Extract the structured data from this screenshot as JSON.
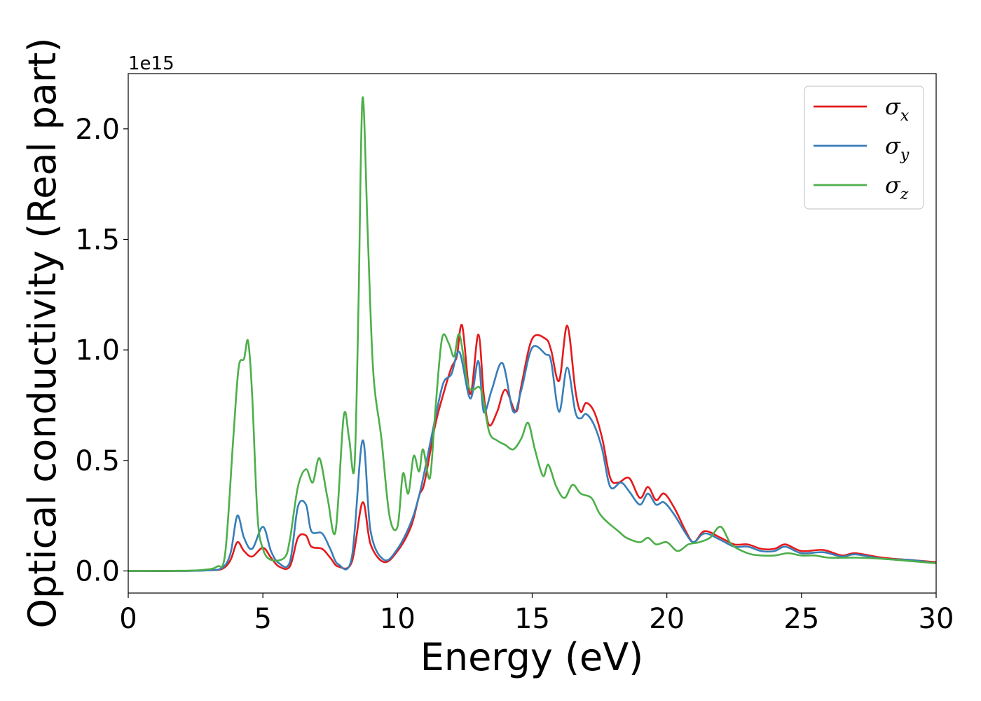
{
  "chart_data": {
    "type": "line",
    "xlabel": "Energy (eV)",
    "ylabel": "Optical conductivity (Real part)",
    "y_offset_text": "1e15",
    "xlim": [
      0,
      30
    ],
    "ylim": [
      -0.1,
      2.25
    ],
    "x_ticks": [
      0,
      5,
      10,
      15,
      20,
      25,
      30
    ],
    "x_tick_labels": [
      "0",
      "5",
      "10",
      "15",
      "20",
      "25",
      "30"
    ],
    "y_ticks": [
      0.0,
      0.5,
      1.0,
      1.5,
      2.0
    ],
    "y_tick_labels": [
      "0.0",
      "0.5",
      "1.0",
      "1.5",
      "2.0"
    ],
    "grid": false,
    "legend_position": "top-right",
    "series": [
      {
        "name": "σx",
        "symbol": "σ",
        "subscript": "x",
        "color": "#e41a1c",
        "points": [
          [
            0,
            0
          ],
          [
            2,
            0
          ],
          [
            3,
            0.003
          ],
          [
            3.5,
            0.01
          ],
          [
            3.8,
            0.05
          ],
          [
            4.05,
            0.13
          ],
          [
            4.3,
            0.09
          ],
          [
            4.6,
            0.065
          ],
          [
            5.0,
            0.105
          ],
          [
            5.3,
            0.06
          ],
          [
            5.6,
            0.02
          ],
          [
            6.0,
            0.02
          ],
          [
            6.3,
            0.15
          ],
          [
            6.6,
            0.16
          ],
          [
            6.8,
            0.11
          ],
          [
            7.2,
            0.1
          ],
          [
            7.5,
            0.06
          ],
          [
            7.8,
            0.02
          ],
          [
            8.3,
            0.04
          ],
          [
            8.7,
            0.31
          ],
          [
            9.0,
            0.12
          ],
          [
            9.5,
            0.04
          ],
          [
            10.0,
            0.09
          ],
          [
            10.5,
            0.2
          ],
          [
            10.8,
            0.34
          ],
          [
            11.0,
            0.4
          ],
          [
            11.4,
            0.66
          ],
          [
            11.7,
            0.8
          ],
          [
            12.0,
            0.92
          ],
          [
            12.2,
            0.97
          ],
          [
            12.4,
            1.11
          ],
          [
            12.7,
            0.8
          ],
          [
            13.0,
            1.07
          ],
          [
            13.2,
            0.8
          ],
          [
            13.4,
            0.66
          ],
          [
            13.7,
            0.72
          ],
          [
            14.0,
            0.82
          ],
          [
            14.4,
            0.72
          ],
          [
            14.6,
            0.84
          ],
          [
            15.0,
            1.05
          ],
          [
            15.5,
            1.05
          ],
          [
            15.7,
            1.0
          ],
          [
            16.0,
            0.86
          ],
          [
            16.3,
            1.11
          ],
          [
            16.6,
            0.82
          ],
          [
            16.8,
            0.72
          ],
          [
            17.0,
            0.76
          ],
          [
            17.3,
            0.72
          ],
          [
            17.6,
            0.6
          ],
          [
            17.9,
            0.42
          ],
          [
            18.2,
            0.4
          ],
          [
            18.6,
            0.42
          ],
          [
            19.0,
            0.33
          ],
          [
            19.3,
            0.38
          ],
          [
            19.6,
            0.32
          ],
          [
            19.9,
            0.35
          ],
          [
            20.3,
            0.28
          ],
          [
            20.7,
            0.18
          ],
          [
            21.0,
            0.13
          ],
          [
            21.4,
            0.18
          ],
          [
            22.0,
            0.15
          ],
          [
            22.5,
            0.12
          ],
          [
            23.0,
            0.12
          ],
          [
            23.5,
            0.1
          ],
          [
            24.0,
            0.1
          ],
          [
            24.4,
            0.12
          ],
          [
            25.0,
            0.09
          ],
          [
            25.8,
            0.095
          ],
          [
            26.5,
            0.07
          ],
          [
            27.0,
            0.08
          ],
          [
            28.0,
            0.06
          ],
          [
            29.0,
            0.05
          ],
          [
            30.0,
            0.04
          ]
        ]
      },
      {
        "name": "σy",
        "symbol": "σ",
        "subscript": "y",
        "color": "#377eb8",
        "points": [
          [
            0,
            0
          ],
          [
            2,
            0
          ],
          [
            3,
            0.003
          ],
          [
            3.5,
            0.015
          ],
          [
            3.8,
            0.08
          ],
          [
            4.05,
            0.25
          ],
          [
            4.3,
            0.15
          ],
          [
            4.6,
            0.1
          ],
          [
            5.0,
            0.2
          ],
          [
            5.3,
            0.09
          ],
          [
            5.6,
            0.035
          ],
          [
            6.0,
            0.04
          ],
          [
            6.3,
            0.29
          ],
          [
            6.6,
            0.3
          ],
          [
            6.8,
            0.18
          ],
          [
            7.2,
            0.17
          ],
          [
            7.5,
            0.1
          ],
          [
            7.8,
            0.03
          ],
          [
            8.3,
            0.06
          ],
          [
            8.7,
            0.59
          ],
          [
            9.0,
            0.18
          ],
          [
            9.5,
            0.05
          ],
          [
            10.0,
            0.1
          ],
          [
            10.5,
            0.22
          ],
          [
            10.8,
            0.34
          ],
          [
            11.0,
            0.45
          ],
          [
            11.4,
            0.69
          ],
          [
            11.7,
            0.85
          ],
          [
            12.0,
            0.89
          ],
          [
            12.3,
            0.99
          ],
          [
            12.7,
            0.78
          ],
          [
            13.0,
            0.95
          ],
          [
            13.2,
            0.72
          ],
          [
            13.5,
            0.82
          ],
          [
            13.9,
            0.94
          ],
          [
            14.3,
            0.72
          ],
          [
            14.6,
            0.82
          ],
          [
            15.0,
            1.01
          ],
          [
            15.5,
            0.98
          ],
          [
            15.7,
            0.95
          ],
          [
            16.0,
            0.72
          ],
          [
            16.3,
            0.92
          ],
          [
            16.6,
            0.72
          ],
          [
            16.8,
            0.69
          ],
          [
            17.0,
            0.71
          ],
          [
            17.3,
            0.66
          ],
          [
            17.6,
            0.55
          ],
          [
            17.9,
            0.38
          ],
          [
            18.3,
            0.4
          ],
          [
            18.6,
            0.36
          ],
          [
            19.0,
            0.3
          ],
          [
            19.3,
            0.35
          ],
          [
            19.6,
            0.3
          ],
          [
            19.9,
            0.31
          ],
          [
            20.3,
            0.25
          ],
          [
            20.7,
            0.17
          ],
          [
            21.0,
            0.13
          ],
          [
            21.4,
            0.17
          ],
          [
            22.0,
            0.14
          ],
          [
            22.5,
            0.11
          ],
          [
            23.0,
            0.11
          ],
          [
            23.5,
            0.09
          ],
          [
            24.0,
            0.09
          ],
          [
            24.4,
            0.11
          ],
          [
            25.0,
            0.08
          ],
          [
            25.8,
            0.085
          ],
          [
            26.5,
            0.065
          ],
          [
            27.0,
            0.075
          ],
          [
            28.0,
            0.055
          ],
          [
            29.0,
            0.05
          ],
          [
            30.0,
            0.035
          ]
        ]
      },
      {
        "name": "σz",
        "symbol": "σ",
        "subscript": "z",
        "color": "#4daf4a",
        "points": [
          [
            0,
            0
          ],
          [
            2,
            0.001
          ],
          [
            2.8,
            0.005
          ],
          [
            3.3,
            0.02
          ],
          [
            3.6,
            0.08
          ],
          [
            3.9,
            0.6
          ],
          [
            4.1,
            0.92
          ],
          [
            4.3,
            0.96
          ],
          [
            4.45,
            1.04
          ],
          [
            4.6,
            0.8
          ],
          [
            4.8,
            0.25
          ],
          [
            5.0,
            0.1
          ],
          [
            5.3,
            0.05
          ],
          [
            5.8,
            0.06
          ],
          [
            6.0,
            0.14
          ],
          [
            6.3,
            0.38
          ],
          [
            6.6,
            0.46
          ],
          [
            6.85,
            0.4
          ],
          [
            7.1,
            0.51
          ],
          [
            7.4,
            0.33
          ],
          [
            7.7,
            0.18
          ],
          [
            8.0,
            0.7
          ],
          [
            8.2,
            0.6
          ],
          [
            8.4,
            0.47
          ],
          [
            8.55,
            1.2
          ],
          [
            8.7,
            2.14
          ],
          [
            8.9,
            1.5
          ],
          [
            9.1,
            0.9
          ],
          [
            9.4,
            0.6
          ],
          [
            9.7,
            0.25
          ],
          [
            10.0,
            0.2
          ],
          [
            10.2,
            0.44
          ],
          [
            10.4,
            0.35
          ],
          [
            10.6,
            0.52
          ],
          [
            10.8,
            0.45
          ],
          [
            10.95,
            0.55
          ],
          [
            11.2,
            0.42
          ],
          [
            11.4,
            0.72
          ],
          [
            11.65,
            1.05
          ],
          [
            11.9,
            1.03
          ],
          [
            12.1,
            0.97
          ],
          [
            12.3,
            1.07
          ],
          [
            12.6,
            0.85
          ],
          [
            12.8,
            0.82
          ],
          [
            13.1,
            0.82
          ],
          [
            13.4,
            0.63
          ],
          [
            13.7,
            0.59
          ],
          [
            14.0,
            0.57
          ],
          [
            14.3,
            0.55
          ],
          [
            14.6,
            0.6
          ],
          [
            14.85,
            0.67
          ],
          [
            15.1,
            0.55
          ],
          [
            15.4,
            0.43
          ],
          [
            15.6,
            0.48
          ],
          [
            15.9,
            0.38
          ],
          [
            16.2,
            0.33
          ],
          [
            16.5,
            0.39
          ],
          [
            16.8,
            0.35
          ],
          [
            17.2,
            0.33
          ],
          [
            17.5,
            0.26
          ],
          [
            17.8,
            0.22
          ],
          [
            18.2,
            0.18
          ],
          [
            18.5,
            0.15
          ],
          [
            19.0,
            0.13
          ],
          [
            19.3,
            0.15
          ],
          [
            19.6,
            0.12
          ],
          [
            20.0,
            0.13
          ],
          [
            20.4,
            0.09
          ],
          [
            20.8,
            0.12
          ],
          [
            21.2,
            0.13
          ],
          [
            21.6,
            0.15
          ],
          [
            22.0,
            0.2
          ],
          [
            22.4,
            0.12
          ],
          [
            23.0,
            0.08
          ],
          [
            23.5,
            0.07
          ],
          [
            24.0,
            0.07
          ],
          [
            24.5,
            0.08
          ],
          [
            25.0,
            0.07
          ],
          [
            25.5,
            0.07
          ],
          [
            26.0,
            0.06
          ],
          [
            27.0,
            0.06
          ],
          [
            28.0,
            0.055
          ],
          [
            29.0,
            0.045
          ],
          [
            30.0,
            0.035
          ]
        ]
      }
    ]
  }
}
